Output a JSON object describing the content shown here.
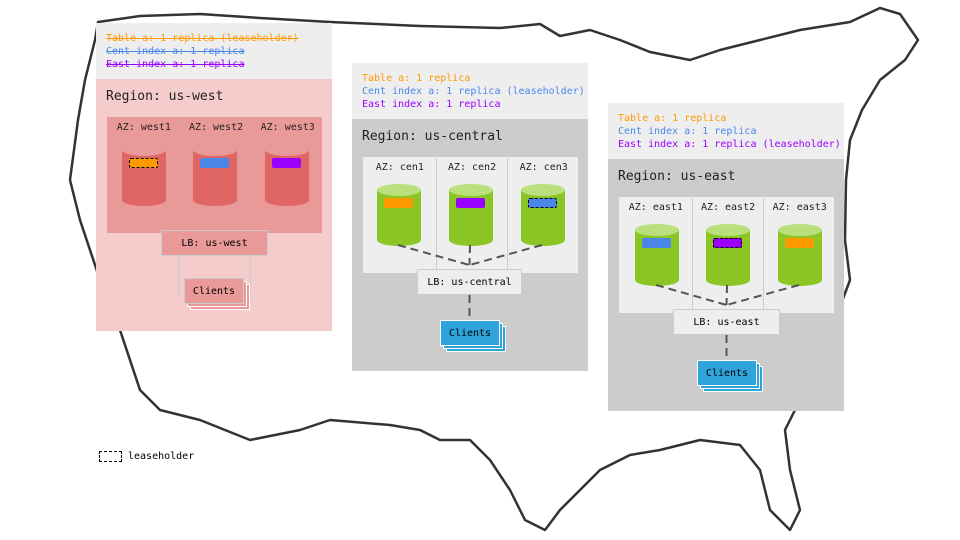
{
  "colors": {
    "table": "#ff9900",
    "cent": "#4a86e8",
    "east": "#9900ff"
  },
  "regions": [
    {
      "id": "west",
      "header": [
        {
          "text": "Table a: 1 replica (leaseholder)",
          "color": "#ff9900",
          "struck": true
        },
        {
          "text": "Cent index a: 1 replica",
          "color": "#4a86e8",
          "struck": true
        },
        {
          "text": "East index a: 1 replica",
          "color": "#9900ff",
          "struck": true
        }
      ],
      "label": "Region: us-west",
      "azs": [
        {
          "label": "AZ: west1",
          "replica": "#ff9900",
          "leaseholder": true
        },
        {
          "label": "AZ: west2",
          "replica": "#4a86e8",
          "leaseholder": false
        },
        {
          "label": "AZ: west3",
          "replica": "#9900ff",
          "leaseholder": false
        }
      ],
      "lb": "LB: us-west",
      "clients": "Clients",
      "theme": {
        "body": "#f4cccc",
        "az": "#ea9999",
        "cyl": "#e06666",
        "cylTop": "#ea9999",
        "lb": "#ea9999",
        "clients": "#ea9999",
        "line": "#cccccc",
        "dashed": false
      }
    },
    {
      "id": "central",
      "header": [
        {
          "text": "Table a: 1 replica",
          "color": "#ff9900",
          "struck": false
        },
        {
          "text": "Cent index a: 1 replica (leaseholder)",
          "color": "#4a86e8",
          "struck": false
        },
        {
          "text": "East index a: 1 replica",
          "color": "#9900ff",
          "struck": false
        }
      ],
      "label": "Region: us-central",
      "azs": [
        {
          "label": "AZ: cen1",
          "replica": "#ff9900",
          "leaseholder": false
        },
        {
          "label": "AZ: cen2",
          "replica": "#9900ff",
          "leaseholder": false
        },
        {
          "label": "AZ: cen3",
          "replica": "#4a86e8",
          "leaseholder": true
        }
      ],
      "lb": "LB: us-central",
      "clients": "Clients",
      "theme": {
        "body": "#cccccc",
        "az": "#eeeeee",
        "cyl": "#8bc625",
        "cylTop": "#b9e07c",
        "lb": "#eeeeee",
        "clients": "#2fa4dc",
        "line": "#555555",
        "dashed": true
      }
    },
    {
      "id": "east",
      "header": [
        {
          "text": "Table a: 1 replica",
          "color": "#ff9900",
          "struck": false
        },
        {
          "text": "Cent index a: 1 replica",
          "color": "#4a86e8",
          "struck": false
        },
        {
          "text": "East index a: 1 replica (leaseholder)",
          "color": "#9900ff",
          "struck": false
        }
      ],
      "label": "Region: us-east",
      "azs": [
        {
          "label": "AZ: east1",
          "replica": "#4a86e8",
          "leaseholder": false
        },
        {
          "label": "AZ: east2",
          "replica": "#9900ff",
          "leaseholder": true
        },
        {
          "label": "AZ: east3",
          "replica": "#ff9900",
          "leaseholder": false
        }
      ],
      "lb": "LB: us-east",
      "clients": "Clients",
      "theme": {
        "body": "#cccccc",
        "az": "#eeeeee",
        "cyl": "#8bc625",
        "cylTop": "#b9e07c",
        "lb": "#eeeeee",
        "clients": "#2fa4dc",
        "line": "#555555",
        "dashed": true
      }
    }
  ],
  "legend": {
    "label": "leaseholder"
  }
}
